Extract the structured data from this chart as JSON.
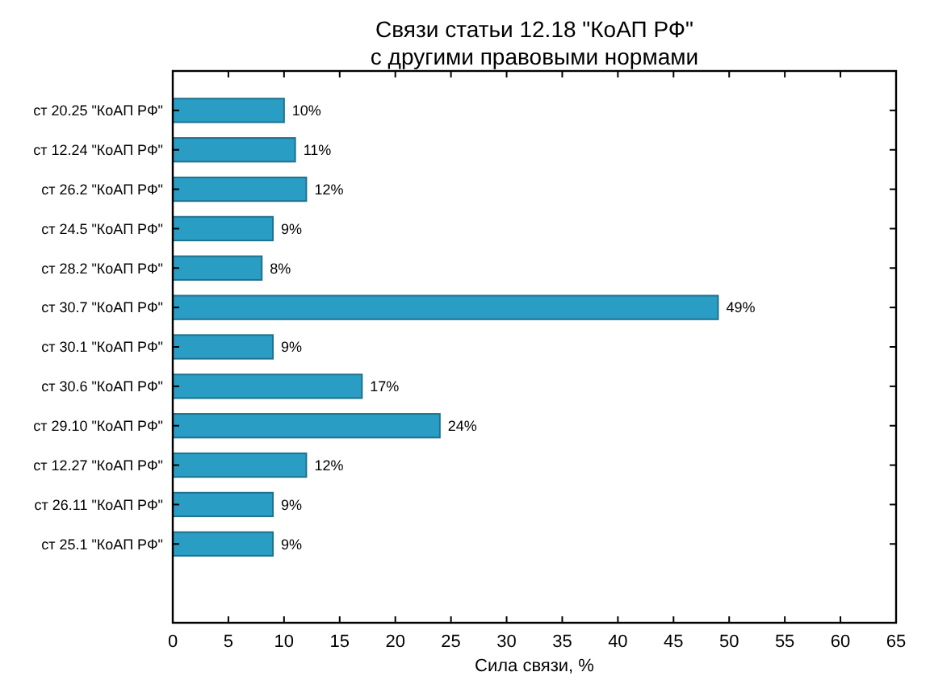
{
  "chart_data": {
    "type": "bar",
    "orientation": "horizontal",
    "title": "Связи статьи 12.18 \"КоАП РФ\"\nс другими правовыми нормами",
    "xlabel": "Сила связи, %",
    "categories": [
      "ст 20.25 \"КоАП РФ\"",
      "ст 12.24 \"КоАП РФ\"",
      "ст 26.2 \"КоАП РФ\"",
      "ст 24.5 \"КоАП РФ\"",
      "ст 28.2 \"КоАП РФ\"",
      "ст 30.7 \"КоАП РФ\"",
      "ст 30.1 \"КоАП РФ\"",
      "ст 30.6 \"КоАП РФ\"",
      "ст 29.10 \"КоАП РФ\"",
      "ст 12.27 \"КоАП РФ\"",
      "ст 26.11 \"КоАП РФ\"",
      "ст 25.1 \"КоАП РФ\""
    ],
    "values": [
      10,
      11,
      12,
      9,
      8,
      49,
      9,
      17,
      24,
      12,
      9,
      9
    ],
    "value_labels": [
      "10%",
      "11%",
      "12%",
      "9%",
      "8%",
      "49%",
      "9%",
      "17%",
      "24%",
      "12%",
      "9%",
      "9%"
    ],
    "color": "#2a9dc4",
    "xlim": [
      0,
      65
    ],
    "xticks": [
      0,
      5,
      10,
      15,
      20,
      25,
      30,
      35,
      40,
      45,
      50,
      55,
      60,
      65
    ]
  }
}
